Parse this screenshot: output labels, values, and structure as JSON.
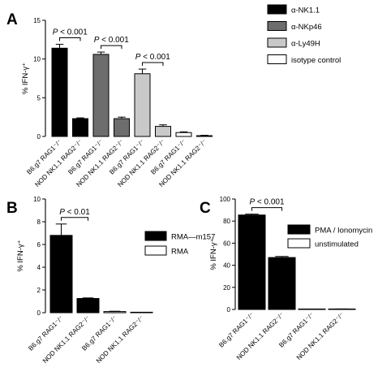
{
  "chart_data": [
    {
      "panel": "A",
      "type": "bar",
      "ylabel": "% IFN-γ⁺",
      "ylim": [
        0,
        15
      ],
      "yticks": [
        0,
        5,
        10,
        15
      ],
      "categories": [
        "B6.g7 RAG1⁻/⁻",
        "NOD NK1.1 RAG2⁻/⁻",
        "B6.g7 RAG1⁻/⁻",
        "NOD NK1.1 RAG2⁻/⁻",
        "B6.g7 RAG1⁻/⁻",
        "NOD NK1.1 RAG2⁻/⁻",
        "B6.g7 RAG1⁻/⁻",
        "NOD NK1.1 RAG2⁻/⁻"
      ],
      "values": [
        11.4,
        2.3,
        10.6,
        2.3,
        8.1,
        1.3,
        0.5,
        0.1
      ],
      "errors": [
        0.5,
        0.1,
        0.3,
        0.2,
        0.6,
        0.2,
        0.1,
        0.05
      ],
      "bar_series": [
        0,
        0,
        1,
        1,
        2,
        2,
        3,
        3
      ],
      "series": [
        {
          "name": "α-NK1.1",
          "color": "#000000"
        },
        {
          "name": "α-NKp46",
          "color": "#6d6d6d"
        },
        {
          "name": "α-Ly49H",
          "color": "#c9c9c9"
        },
        {
          "name": "isotype control",
          "color": "#ffffff"
        }
      ],
      "annotations": [
        {
          "from": 0,
          "to": 1,
          "text": "P < 0.001"
        },
        {
          "from": 2,
          "to": 3,
          "text": "P < 0.001"
        },
        {
          "from": 4,
          "to": 5,
          "text": "P < 0.001"
        }
      ]
    },
    {
      "panel": "B",
      "type": "bar",
      "ylabel": "% IFN-γ⁺",
      "ylim": [
        0,
        10
      ],
      "yticks": [
        0,
        2,
        4,
        6,
        8,
        10
      ],
      "categories": [
        "B6.g7 RAG1⁻/⁻",
        "NOD NK1.1 RAG2⁻/⁻",
        "B6.g7 RAG1⁻/⁻",
        "NOD NK1.1 RAG2⁻/⁻"
      ],
      "values": [
        6.8,
        1.25,
        0.1,
        0.02
      ],
      "errors": [
        1.0,
        0.05,
        0.03,
        0.01
      ],
      "bar_series": [
        0,
        0,
        1,
        1
      ],
      "series": [
        {
          "name": "RMA—m157",
          "color": "#000000"
        },
        {
          "name": "RMA",
          "color": "#ffffff"
        }
      ],
      "annotations": [
        {
          "from": 0,
          "to": 1,
          "text": "P < 0.01"
        }
      ]
    },
    {
      "panel": "C",
      "type": "bar",
      "ylabel": "% IFN-γ⁺",
      "ylim": [
        0,
        100
      ],
      "yticks": [
        0,
        20,
        40,
        60,
        80,
        100
      ],
      "categories": [
        "B6.g7 RAG1⁻/⁻",
        "NOD NK1.1 RAG2⁻/⁻",
        "B6.g7 RAG1⁻/⁻",
        "NOD NK1.1 RAG2⁻/⁻"
      ],
      "values": [
        85.5,
        47,
        0.3,
        0.4
      ],
      "errors": [
        0.8,
        1.0,
        0.1,
        0.1
      ],
      "bar_series": [
        0,
        0,
        1,
        1
      ],
      "series": [
        {
          "name": "PMA / Ionomycin",
          "color": "#000000"
        },
        {
          "name": "unstimulated",
          "color": "#ffffff"
        }
      ],
      "annotations": [
        {
          "from": 0,
          "to": 1,
          "text": "P < 0.001"
        }
      ]
    }
  ]
}
